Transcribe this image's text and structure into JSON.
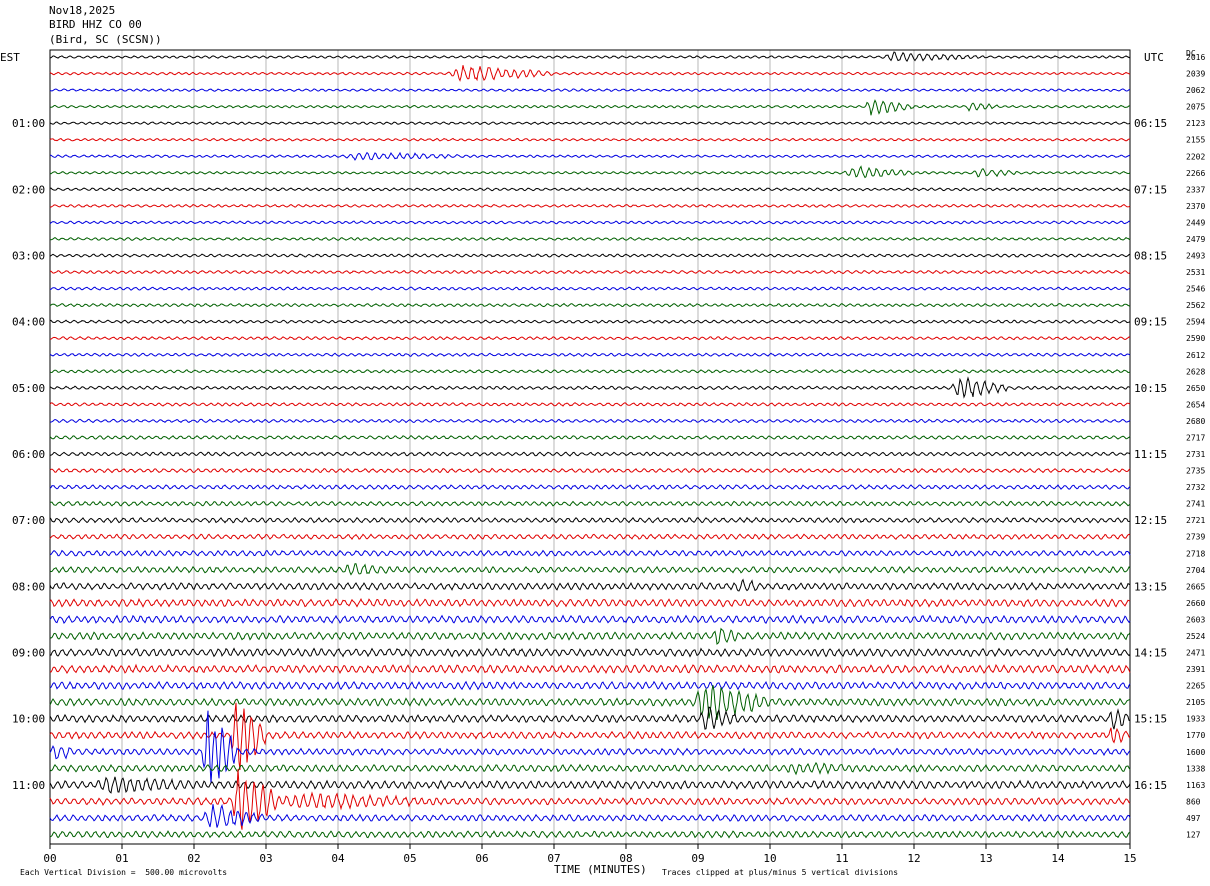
{
  "header": {
    "date": "Nov18,2025",
    "station": "BIRD HHZ CO 00",
    "location": "(Bird, SC (SCSN))"
  },
  "tz": {
    "left": "EST",
    "right": "UTC",
    "dc": "DC"
  },
  "footer": {
    "scale": "Each Vertical Division =  500.00 microvolts",
    "clip": "Traces clipped at plus/minus 5 vertical divisions"
  },
  "colors": [
    "#000000",
    "#e00000",
    "#0000e0",
    "#006000"
  ],
  "chart_data": {
    "type": "line",
    "xlabel": "TIME (MINUTES)",
    "xlim": [
      0,
      15
    ],
    "x_ticks": [
      "00",
      "01",
      "02",
      "03",
      "04",
      "05",
      "06",
      "07",
      "08",
      "09",
      "10",
      "11",
      "12",
      "13",
      "14",
      "15"
    ],
    "est_labels": [
      "01:00",
      "02:00",
      "03:00",
      "04:00",
      "05:00",
      "06:00",
      "07:00",
      "08:00",
      "09:00",
      "10:00",
      "11:00"
    ],
    "utc_labels": [
      "06:15",
      "07:15",
      "08:15",
      "09:15",
      "10:15",
      "11:15",
      "12:15",
      "13:15",
      "14:15",
      "15:15",
      "16:15"
    ],
    "dc_values": [
      "2016",
      "2039",
      "2062",
      "2075",
      "2123",
      "2155",
      "2202",
      "2266",
      "2337",
      "2370",
      "2449",
      "2479",
      "2493",
      "2531",
      "2546",
      "2562",
      "2594",
      "2590",
      "2612",
      "2628",
      "2650",
      "2654",
      "2680",
      "2717",
      "2731",
      "2735",
      "2732",
      "2741",
      "2721",
      "2739",
      "2718",
      "2704",
      "2665",
      "2660",
      "2603",
      "2524",
      "2471",
      "2391",
      "2265",
      "2105",
      "1933",
      "1770",
      "1600",
      "1338",
      "1163",
      "860",
      "497",
      "127"
    ],
    "trace_count": 48,
    "noise_level": [
      0.5,
      0.5,
      0.5,
      0.5,
      0.5,
      0.5,
      0.5,
      0.5,
      0.55,
      0.55,
      0.55,
      0.55,
      0.6,
      0.6,
      0.6,
      0.6,
      0.6,
      0.6,
      0.6,
      0.6,
      0.65,
      0.65,
      0.65,
      0.7,
      0.75,
      0.8,
      0.85,
      0.9,
      1.0,
      1.0,
      1.1,
      1.2,
      1.4,
      1.5,
      1.5,
      1.5,
      1.6,
      1.6,
      1.5,
      1.5,
      1.5,
      1.4,
      1.3,
      1.4,
      1.6,
      1.4,
      1.3,
      1.3
    ],
    "events": [
      {
        "trace": 0,
        "start": 11.5,
        "end": 13.0,
        "amp": 1.5
      },
      {
        "trace": 1,
        "start": 5.5,
        "end": 7.0,
        "amp": 2.5
      },
      {
        "trace": 3,
        "start": 11.3,
        "end": 12.0,
        "amp": 2.5
      },
      {
        "trace": 3,
        "start": 12.7,
        "end": 13.2,
        "amp": 1.5
      },
      {
        "trace": 6,
        "start": 4.0,
        "end": 6.0,
        "amp": 1.3
      },
      {
        "trace": 7,
        "start": 11.0,
        "end": 12.0,
        "amp": 2.0
      },
      {
        "trace": 7,
        "start": 12.8,
        "end": 13.5,
        "amp": 1.5
      },
      {
        "trace": 20,
        "start": 12.5,
        "end": 13.3,
        "amp": 3.5
      },
      {
        "trace": 31,
        "start": 4.0,
        "end": 5.0,
        "amp": 2.0
      },
      {
        "trace": 32,
        "start": 9.5,
        "end": 10.0,
        "amp": 2.5
      },
      {
        "trace": 35,
        "start": 9.2,
        "end": 9.6,
        "amp": 3.5
      },
      {
        "trace": 39,
        "start": 8.9,
        "end": 10.0,
        "amp": 6.0
      },
      {
        "trace": 40,
        "start": 9.0,
        "end": 9.6,
        "amp": 4.0
      },
      {
        "trace": 40,
        "start": 14.7,
        "end": 15.0,
        "amp": 4.5
      },
      {
        "trace": 41,
        "start": 14.7,
        "end": 15.0,
        "amp": 3.5
      },
      {
        "trace": 42,
        "start": 0.0,
        "end": 0.4,
        "amp": 3.0
      },
      {
        "trace": 43,
        "start": 10.0,
        "end": 12.0,
        "amp": 1.8
      },
      {
        "trace": 44,
        "start": 0.5,
        "end": 2.5,
        "amp": 2.6
      },
      {
        "trace": 45,
        "start": 3.0,
        "end": 6.0,
        "amp": 2.5
      },
      {
        "trace": 42,
        "start": 2.1,
        "end": 2.6,
        "amp": 12.0
      },
      {
        "trace": 41,
        "start": 2.5,
        "end": 3.0,
        "amp": 12.0
      },
      {
        "trace": 45,
        "start": 2.5,
        "end": 3.2,
        "amp": 9.0
      },
      {
        "trace": 46,
        "start": 2.1,
        "end": 3.0,
        "amp": 4.0
      }
    ]
  }
}
